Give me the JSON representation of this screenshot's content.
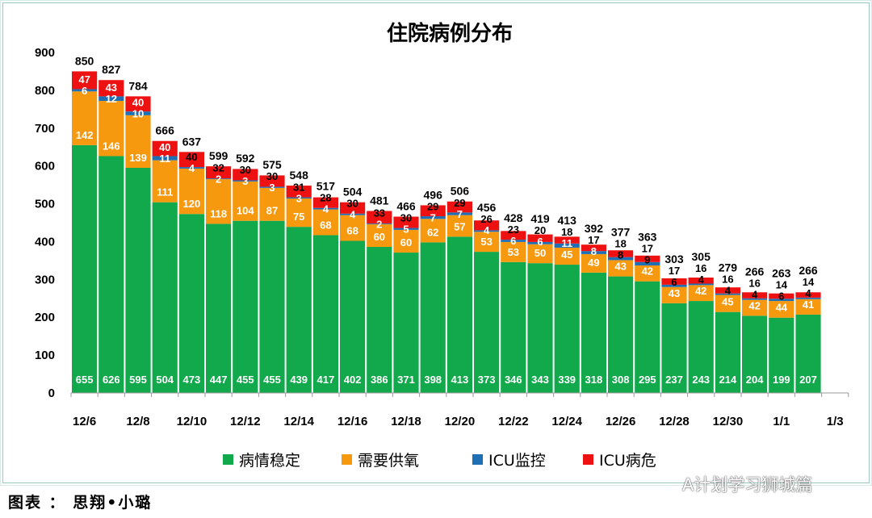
{
  "chart_data": {
    "type": "bar",
    "stacked": true,
    "title": "住院病例分布",
    "categories": [
      "12/6",
      "12/7",
      "12/8",
      "12/9",
      "12/10",
      "12/11",
      "12/12",
      "12/13",
      "12/14",
      "12/15",
      "12/16",
      "12/17",
      "12/18",
      "12/19",
      "12/20",
      "12/21",
      "12/22",
      "12/23",
      "12/24",
      "12/25",
      "12/26",
      "12/27",
      "12/28",
      "12/29",
      "12/30",
      "12/31",
      "1/1",
      "1/2"
    ],
    "x_tick_labels": [
      "12/6",
      "12/8",
      "12/10",
      "12/12",
      "12/14",
      "12/16",
      "12/18",
      "12/20",
      "12/22",
      "12/24",
      "12/26",
      "12/28",
      "12/30",
      "1/1",
      "1/3"
    ],
    "series": [
      {
        "name": "病情稳定",
        "color": "#12a84c",
        "values": [
          655,
          626,
          595,
          504,
          473,
          447,
          455,
          455,
          439,
          417,
          402,
          386,
          371,
          398,
          413,
          373,
          346,
          343,
          339,
          318,
          308,
          295,
          237,
          243,
          214,
          204,
          199,
          207
        ]
      },
      {
        "name": "需要供氧",
        "color": "#f7990f",
        "values": [
          142,
          146,
          139,
          111,
          120,
          118,
          104,
          87,
          75,
          68,
          68,
          60,
          60,
          62,
          57,
          53,
          53,
          50,
          45,
          49,
          43,
          42,
          43,
          42,
          45,
          42,
          44,
          41
        ]
      },
      {
        "name": "ICU监控",
        "color": "#1f6fb5",
        "values": [
          6,
          12,
          10,
          11,
          4,
          2,
          3,
          3,
          3,
          4,
          4,
          2,
          5,
          7,
          7,
          4,
          6,
          6,
          11,
          8,
          8,
          9,
          6,
          4,
          4,
          4,
          6,
          4
        ]
      },
      {
        "name": "ICU病危",
        "color": "#ee1111",
        "values": [
          47,
          43,
          40,
          40,
          40,
          32,
          30,
          30,
          31,
          28,
          30,
          33,
          30,
          29,
          29,
          26,
          23,
          20,
          18,
          17,
          18,
          17,
          17,
          16,
          16,
          16,
          14,
          14
        ]
      }
    ],
    "totals": [
      850,
      827,
      784,
      666,
      637,
      599,
      592,
      575,
      548,
      517,
      504,
      481,
      466,
      496,
      506,
      456,
      428,
      419,
      413,
      392,
      377,
      363,
      303,
      305,
      279,
      266,
      263,
      266
    ],
    "ylim": [
      0,
      900
    ],
    "yticks": [
      0,
      100,
      200,
      300,
      400,
      500,
      600,
      700,
      800,
      900
    ],
    "grid": false,
    "legend": "bottom"
  },
  "footer": "图表 ： 思翔•小璐",
  "watermark": "A计划学习狮城篇"
}
